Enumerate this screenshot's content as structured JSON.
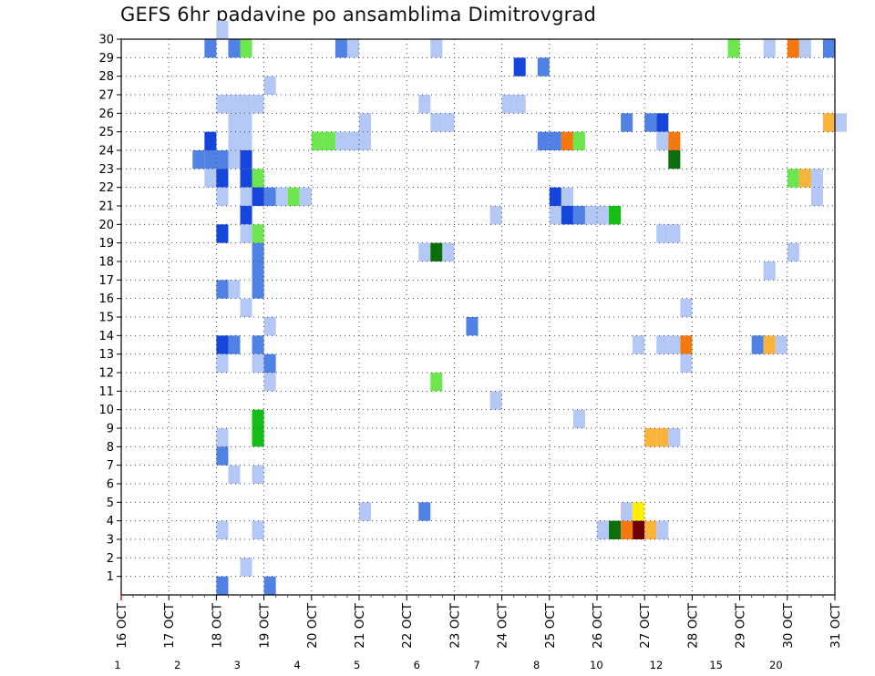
{
  "chart_data": {
    "type": "heatmap",
    "title": "GEFS 6hr padavine po ansamblima Dimitrovgrad",
    "xlabel": "",
    "ylabel": "",
    "x_tick_labels": [
      "16 OCT",
      "17 OCT",
      "18 OCT",
      "19 OCT",
      "20 OCT",
      "21 OCT",
      "22 OCT",
      "23 OCT",
      "24 OCT",
      "25 OCT",
      "26 OCT",
      "27 OCT",
      "28 OCT",
      "29 OCT",
      "30 OCT",
      "31 OCT"
    ],
    "y_tick_labels": [
      "1",
      "2",
      "3",
      "4",
      "5",
      "6",
      "7",
      "8",
      "9",
      "10",
      "11",
      "12",
      "13",
      "14",
      "15",
      "16",
      "17",
      "18",
      "19",
      "20",
      "21",
      "22",
      "23",
      "24",
      "25",
      "26",
      "27",
      "28",
      "29",
      "30"
    ],
    "xlim": [
      "16 OCT 00Z",
      "31 OCT 00Z"
    ],
    "ylim": [
      0,
      30
    ],
    "time_step_hours": 6,
    "grid": true,
    "colorbar": {
      "labels": [
        "1",
        "2",
        "3",
        "4",
        "5",
        "6",
        "7",
        "8",
        "10",
        "12",
        "15",
        "20"
      ],
      "colors": [
        "#b4c8f5",
        "#5082e6",
        "#1446dc",
        "#6ee650",
        "#14be14",
        "#0a6e0a",
        "#fff000",
        "#fab43c",
        "#f5780f",
        "#e63c0f",
        "#aa0000",
        "#6e0000"
      ]
    },
    "series": [
      {
        "member": 30,
        "cells": [
          [
            8,
            1
          ]
        ]
      },
      {
        "member": 29,
        "cells": [
          [
            7,
            2
          ],
          [
            9,
            2
          ],
          [
            10,
            4
          ],
          [
            18,
            2
          ],
          [
            19,
            1
          ],
          [
            26,
            1
          ],
          [
            51,
            4
          ],
          [
            54,
            1
          ],
          [
            56,
            10
          ],
          [
            57,
            1
          ],
          [
            59,
            2
          ]
        ]
      },
      {
        "member": 28,
        "cells": [
          [
            33,
            3
          ],
          [
            35,
            2
          ]
        ]
      },
      {
        "member": 27,
        "cells": [
          [
            12,
            1
          ]
        ]
      },
      {
        "member": 26,
        "cells": [
          [
            8,
            1
          ],
          [
            9,
            1
          ],
          [
            10,
            1
          ],
          [
            11,
            1
          ],
          [
            25,
            1
          ],
          [
            32,
            1
          ],
          [
            33,
            1
          ]
        ]
      },
      {
        "member": 25,
        "cells": [
          [
            9,
            1
          ],
          [
            10,
            1
          ],
          [
            20,
            1
          ],
          [
            26,
            1
          ],
          [
            27,
            1
          ],
          [
            42,
            2
          ],
          [
            44,
            2
          ],
          [
            45,
            3
          ],
          [
            59,
            8
          ],
          [
            60,
            1
          ]
        ]
      },
      {
        "member": 24,
        "cells": [
          [
            7,
            3
          ],
          [
            9,
            1
          ],
          [
            10,
            1
          ],
          [
            16,
            4
          ],
          [
            17,
            4
          ],
          [
            18,
            1
          ],
          [
            19,
            1
          ],
          [
            20,
            1
          ],
          [
            35,
            2
          ],
          [
            36,
            2
          ],
          [
            37,
            10
          ],
          [
            38,
            4
          ],
          [
            45,
            1
          ],
          [
            46,
            10
          ]
        ]
      },
      {
        "member": 23,
        "cells": [
          [
            6,
            2
          ],
          [
            7,
            2
          ],
          [
            8,
            2
          ],
          [
            9,
            1
          ],
          [
            10,
            3
          ],
          [
            46,
            6
          ]
        ]
      },
      {
        "member": 22,
        "cells": [
          [
            7,
            1
          ],
          [
            8,
            3
          ],
          [
            10,
            3
          ],
          [
            11,
            4
          ],
          [
            56,
            4
          ],
          [
            57,
            8
          ],
          [
            58,
            1
          ]
        ]
      },
      {
        "member": 21,
        "cells": [
          [
            8,
            1
          ],
          [
            10,
            1
          ],
          [
            11,
            3
          ],
          [
            12,
            2
          ],
          [
            13,
            1
          ],
          [
            14,
            4
          ],
          [
            15,
            1
          ],
          [
            36,
            3
          ],
          [
            37,
            1
          ],
          [
            58,
            1
          ]
        ]
      },
      {
        "member": 20,
        "cells": [
          [
            10,
            3
          ],
          [
            31,
            1
          ],
          [
            36,
            1
          ],
          [
            37,
            3
          ],
          [
            38,
            2
          ],
          [
            39,
            1
          ],
          [
            40,
            1
          ],
          [
            41,
            5
          ]
        ]
      },
      {
        "member": 19,
        "cells": [
          [
            8,
            3
          ],
          [
            10,
            1
          ],
          [
            11,
            4
          ],
          [
            45,
            1
          ],
          [
            46,
            1
          ]
        ]
      },
      {
        "member": 18,
        "cells": [
          [
            11,
            2
          ],
          [
            25,
            1
          ],
          [
            26,
            6
          ],
          [
            27,
            1
          ],
          [
            56,
            1
          ]
        ]
      },
      {
        "member": 17,
        "cells": [
          [
            11,
            2
          ],
          [
            54,
            1
          ]
        ]
      },
      {
        "member": 16,
        "cells": [
          [
            8,
            2
          ],
          [
            9,
            1
          ],
          [
            11,
            2
          ]
        ]
      },
      {
        "member": 15,
        "cells": [
          [
            10,
            1
          ],
          [
            47,
            1
          ]
        ]
      },
      {
        "member": 14,
        "cells": [
          [
            12,
            1
          ],
          [
            29,
            2
          ]
        ]
      },
      {
        "member": 13,
        "cells": [
          [
            8,
            3
          ],
          [
            9,
            2
          ],
          [
            11,
            2
          ],
          [
            43,
            1
          ],
          [
            45,
            1
          ],
          [
            46,
            1
          ],
          [
            47,
            10
          ],
          [
            53,
            2
          ],
          [
            54,
            8
          ],
          [
            55,
            1
          ]
        ]
      },
      {
        "member": 12,
        "cells": [
          [
            8,
            1
          ],
          [
            11,
            1
          ],
          [
            12,
            2
          ],
          [
            47,
            1
          ]
        ]
      },
      {
        "member": 11,
        "cells": [
          [
            12,
            1
          ],
          [
            26,
            4
          ]
        ]
      },
      {
        "member": 10,
        "cells": [
          [
            31,
            1
          ]
        ]
      },
      {
        "member": 9,
        "cells": [
          [
            11,
            5
          ],
          [
            38,
            1
          ]
        ]
      },
      {
        "member": 8,
        "cells": [
          [
            8,
            1
          ],
          [
            11,
            5
          ],
          [
            44,
            8
          ],
          [
            45,
            8
          ],
          [
            46,
            1
          ]
        ]
      },
      {
        "member": 7,
        "cells": [
          [
            8,
            2
          ]
        ]
      },
      {
        "member": 6,
        "cells": [
          [
            9,
            1
          ],
          [
            11,
            1
          ]
        ]
      },
      {
        "member": 4,
        "cells": [
          [
            20,
            1
          ],
          [
            25,
            2
          ],
          [
            42,
            1
          ],
          [
            43,
            7
          ]
        ]
      },
      {
        "member": 3,
        "cells": [
          [
            8,
            1
          ],
          [
            11,
            1
          ],
          [
            40,
            1
          ],
          [
            41,
            6
          ],
          [
            42,
            10
          ],
          [
            43,
            20
          ],
          [
            44,
            8
          ],
          [
            45,
            1
          ]
        ]
      },
      {
        "member": 1,
        "cells": [
          [
            10,
            1
          ]
        ]
      },
      {
        "member": 0,
        "cells": [
          [
            8,
            2
          ],
          [
            12,
            2
          ]
        ]
      }
    ]
  }
}
